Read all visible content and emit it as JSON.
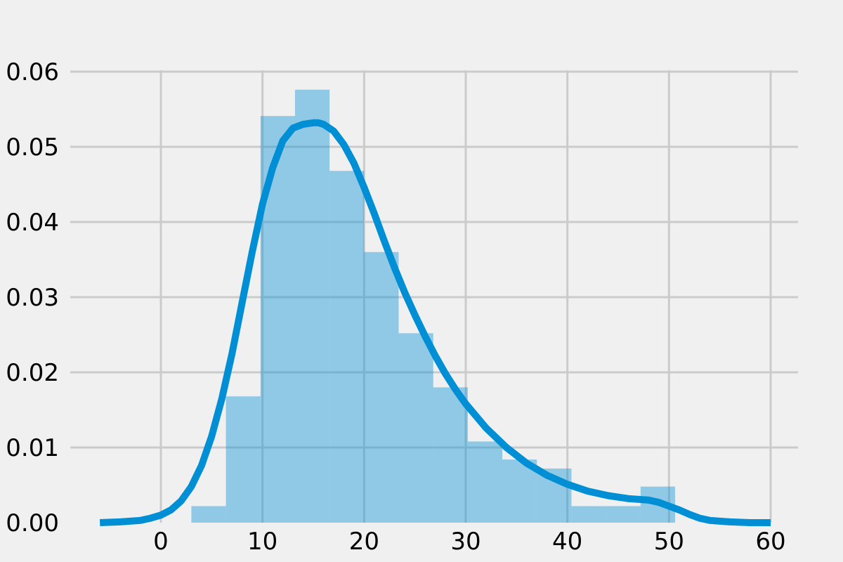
{
  "chart_data": {
    "type": "bar",
    "subtype": "histogram-with-kde",
    "title": "",
    "xlabel": "",
    "ylabel": "",
    "xlim": [
      -6,
      60
    ],
    "ylim": [
      0,
      0.062
    ],
    "x_ticks": [
      0,
      10,
      20,
      30,
      40,
      50,
      60
    ],
    "x_tick_labels": [
      "0",
      "10",
      "20",
      "30",
      "40",
      "50",
      "60"
    ],
    "y_ticks": [
      0,
      0.01,
      0.02,
      0.03,
      0.04,
      0.05,
      0.06
    ],
    "y_tick_labels": [
      "0.00",
      "0.01",
      "0.02",
      "0.03",
      "0.04",
      "0.05",
      "0.06"
    ],
    "grid": true,
    "legend": "none",
    "histogram": {
      "bin_edges": [
        3.0,
        6.4,
        9.8,
        13.2,
        16.6,
        20.0,
        23.4,
        26.8,
        30.2,
        33.6,
        37.0,
        40.4,
        43.8,
        47.2,
        50.6
      ],
      "values": [
        0.0022,
        0.0168,
        0.0541,
        0.0576,
        0.0468,
        0.036,
        0.0252,
        0.018,
        0.0108,
        0.0084,
        0.0072,
        0.0022,
        0.0022,
        0.0048
      ]
    },
    "kde": {
      "x": [
        -6,
        -4,
        -2,
        -1,
        0,
        1,
        2,
        3,
        4,
        5,
        6,
        7,
        8,
        9,
        10,
        11,
        12,
        13,
        14,
        15,
        15.5,
        16,
        17,
        18,
        19,
        20,
        21,
        22,
        23,
        24,
        25,
        26,
        27,
        28,
        29,
        30,
        32,
        34,
        36,
        38,
        40,
        42,
        44,
        46,
        48,
        49,
        50,
        51,
        52,
        53,
        54,
        56,
        58,
        60
      ],
      "y": [
        0.0,
        0.0001,
        0.0003,
        0.0006,
        0.001,
        0.0017,
        0.0029,
        0.0048,
        0.0076,
        0.0115,
        0.0165,
        0.0225,
        0.0293,
        0.0361,
        0.0424,
        0.0472,
        0.0508,
        0.0525,
        0.053,
        0.0532,
        0.0532,
        0.053,
        0.0521,
        0.0503,
        0.0478,
        0.0446,
        0.0411,
        0.0374,
        0.0339,
        0.0306,
        0.0276,
        0.0248,
        0.0222,
        0.0198,
        0.0177,
        0.0158,
        0.0126,
        0.01,
        0.0079,
        0.0063,
        0.0051,
        0.0042,
        0.0036,
        0.0032,
        0.003,
        0.0027,
        0.0022,
        0.0017,
        0.0011,
        0.0006,
        0.0003,
        0.0001,
        0.0,
        0.0
      ]
    },
    "colors": {
      "background": "#f0f0f0",
      "grid": "#cbcbcb",
      "bar": "#008fd5",
      "bar_opacity": 0.4,
      "line": "#008fd5"
    }
  }
}
